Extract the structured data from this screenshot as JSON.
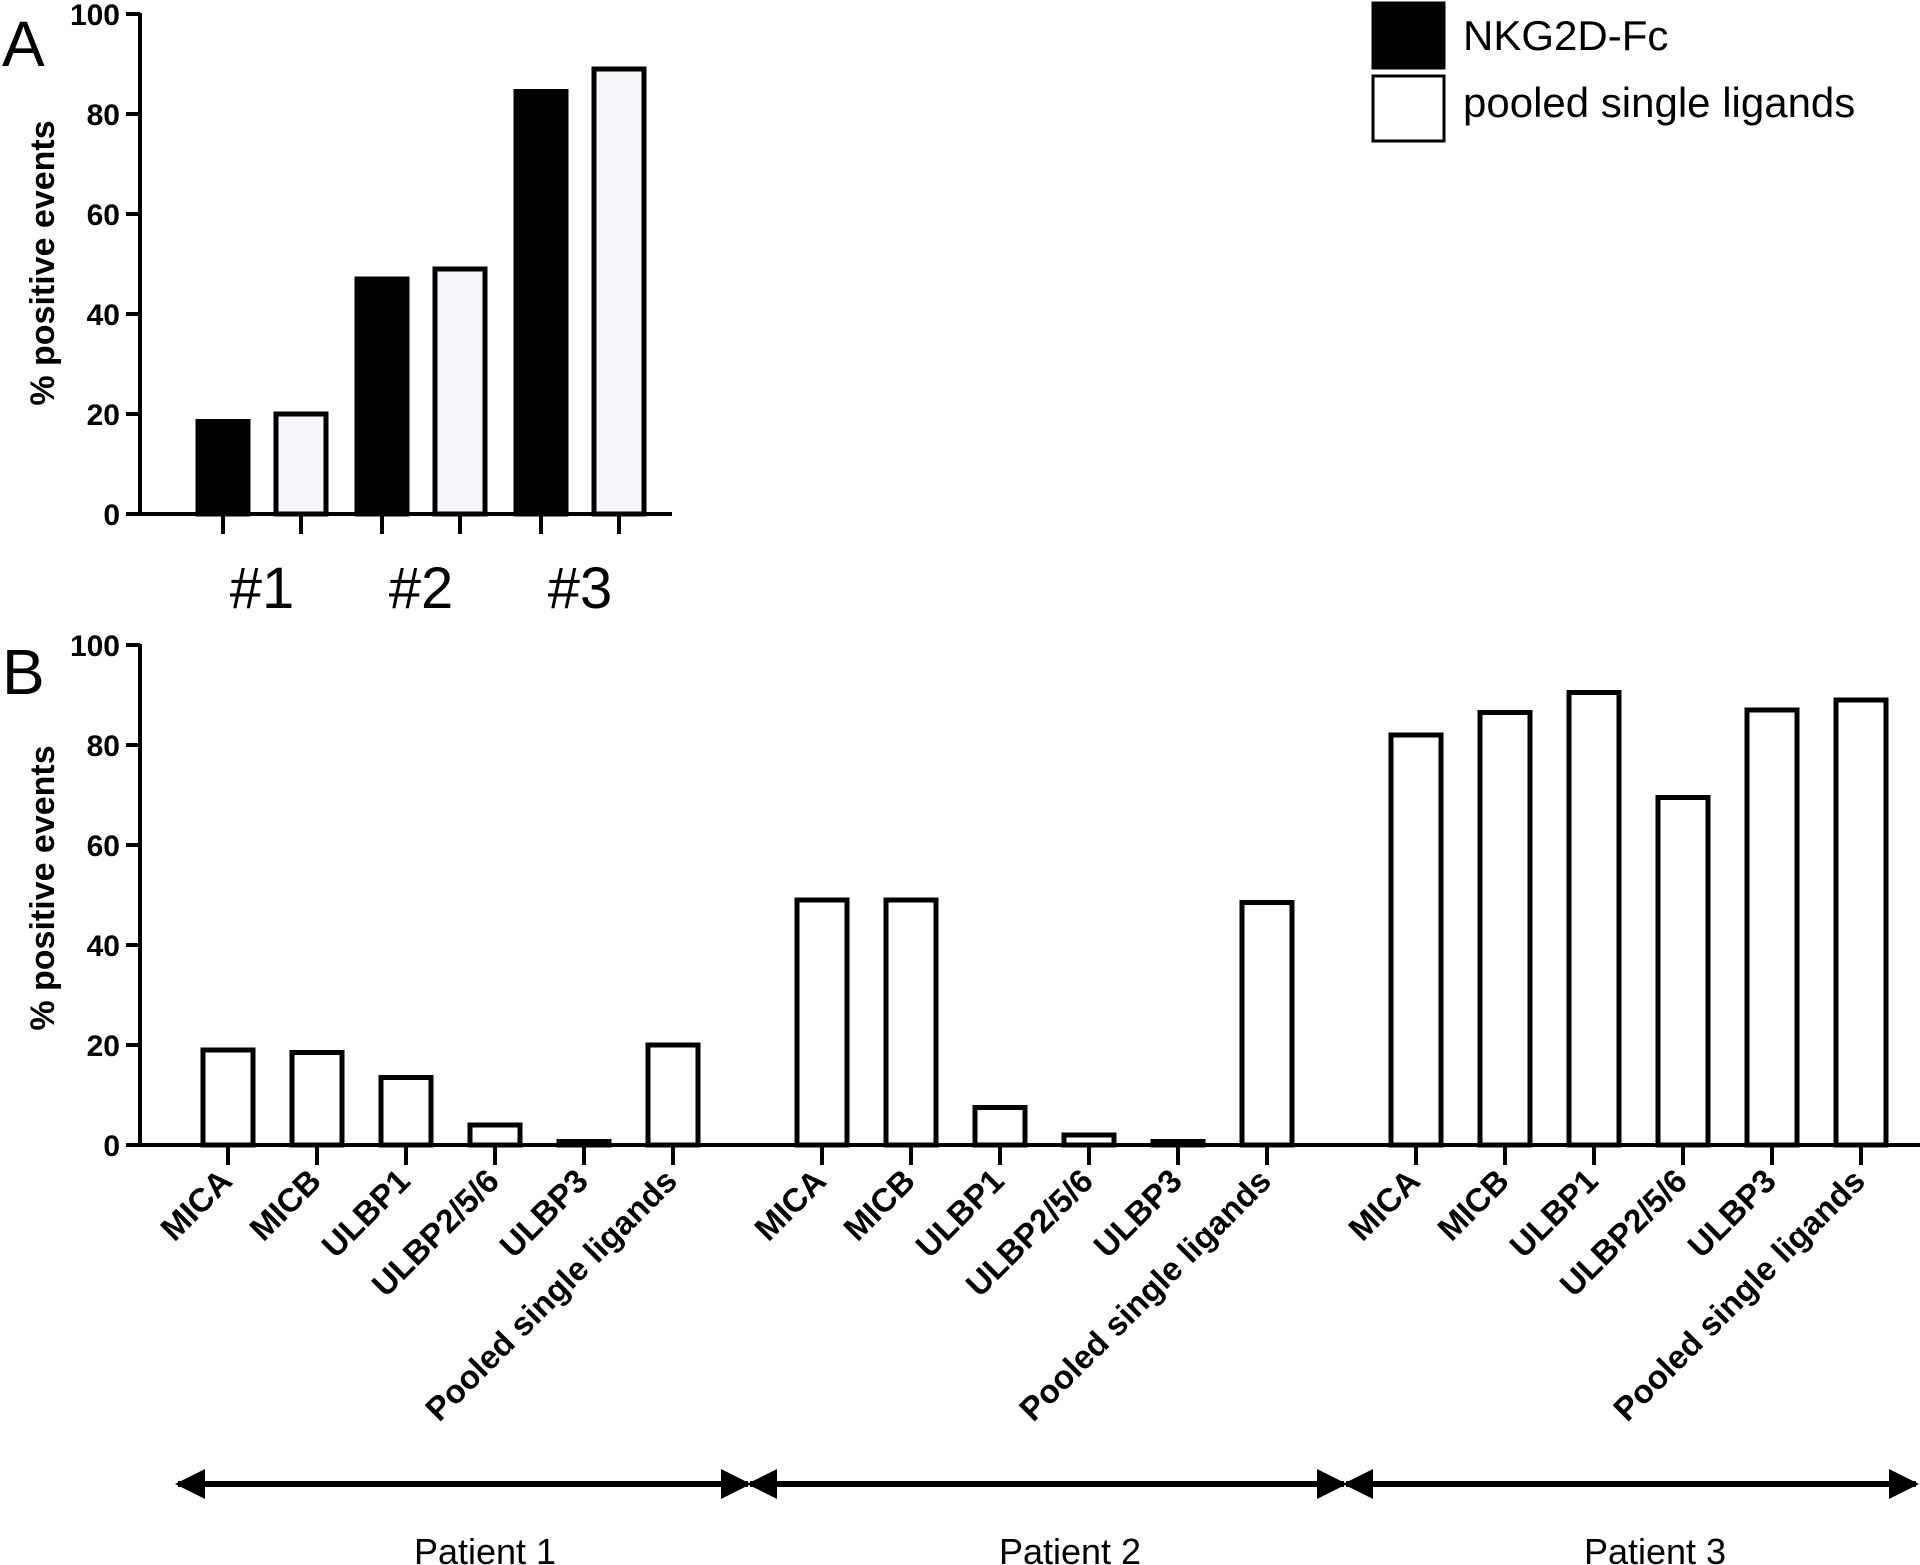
{
  "panels": {
    "a_letter": "A",
    "b_letter": "B"
  },
  "legend": {
    "items": [
      {
        "label": "NKG2D-Fc",
        "fill": "#000000"
      },
      {
        "label": "pooled single ligands",
        "fill": "#ffffff"
      }
    ]
  },
  "patients": [
    "Patient 1",
    "Patient 2",
    "Patient 3"
  ],
  "chart_data": [
    {
      "type": "bar",
      "panel": "A",
      "categories": [
        "#1",
        "#2",
        "#3"
      ],
      "series": [
        {
          "name": "NKG2D-Fc",
          "color": "#000000",
          "values": [
            18.5,
            47,
            84.5
          ]
        },
        {
          "name": "pooled single ligands",
          "color": "#f7f7fc",
          "values": [
            20,
            49,
            89
          ]
        }
      ],
      "ylabel": "% positive events",
      "ylim": [
        0,
        100
      ],
      "yticks": [
        "0",
        "20",
        "40",
        "60",
        "80",
        "100"
      ]
    },
    {
      "type": "bar",
      "panel": "B",
      "categories": [
        "MICA",
        "MICB",
        "ULBP1",
        "ULBP2/5/6",
        "ULBP3",
        "Pooled single ligands",
        "MICA",
        "MICB",
        "ULBP1",
        "ULBP2/5/6",
        "ULBP3",
        "Pooled single ligands",
        "MICA",
        "MICB",
        "ULBP1",
        "ULBP2/5/6",
        "ULBP3",
        "Pooled single ligands"
      ],
      "groups": [
        "Patient 1",
        "Patient 2",
        "Patient 3"
      ],
      "values": [
        19,
        18.5,
        13.5,
        4,
        0.7,
        20,
        49,
        49,
        7.5,
        2,
        0.7,
        48.5,
        82,
        86.5,
        90.5,
        69.5,
        87,
        89
      ],
      "ylabel": "% positive events",
      "ylim": [
        0,
        100
      ],
      "yticks": [
        "0",
        "20",
        "40",
        "60",
        "80",
        "100"
      ]
    }
  ]
}
